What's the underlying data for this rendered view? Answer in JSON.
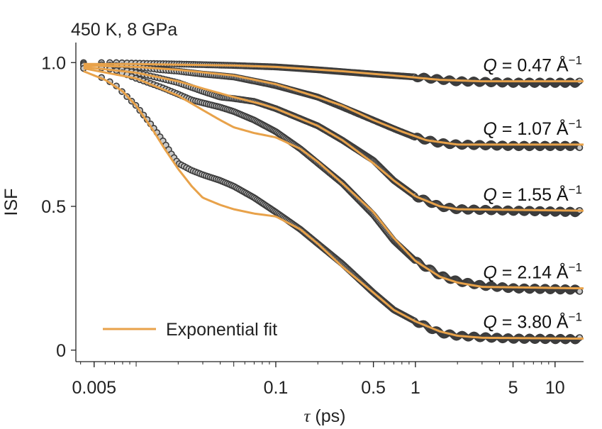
{
  "chart_data": {
    "type": "scatter",
    "title": "450 K, 8 GPa",
    "xlabel_symbol": "τ",
    "xlabel_unit": " (ps)",
    "ylabel": "ISF",
    "xscale": "log",
    "xlim": [
      0.0037,
      16
    ],
    "ylim": [
      -0.04,
      1.05
    ],
    "x_ticks": [
      {
        "value": 0.005,
        "label": "0.005"
      },
      {
        "value": 0.1,
        "label": "0.1"
      },
      {
        "value": 0.5,
        "label": "0.5"
      },
      {
        "value": 1,
        "label": "1"
      },
      {
        "value": 5,
        "label": "5"
      },
      {
        "value": 10,
        "label": "10"
      }
    ],
    "y_ticks": [
      {
        "value": 0,
        "label": "0"
      },
      {
        "value": 0.5,
        "label": "0.5"
      },
      {
        "value": 1.0,
        "label": "1.0"
      }
    ],
    "legend": {
      "label": "Exponential fit",
      "color": "#E8A24A",
      "placement": "bottom-left"
    },
    "colors": {
      "marker_fill": "#c8c8c8",
      "marker_edge": "#3c3c3c",
      "fit_line": "#E8A24A",
      "axis": "#222222"
    },
    "series": [
      {
        "name": "Q = 0.47 Å⁻¹",
        "label_prefix": "Q",
        "label_value": " = 0.47 Å",
        "label_exp": "−1",
        "points": [
          [
            0.0042,
            1.0
          ],
          [
            0.007,
            1.0
          ],
          [
            0.01,
            0.998
          ],
          [
            0.02,
            0.995
          ],
          [
            0.05,
            0.99
          ],
          [
            0.1,
            0.985
          ],
          [
            0.2,
            0.975
          ],
          [
            0.5,
            0.96
          ],
          [
            1,
            0.95
          ],
          [
            2,
            0.935
          ],
          [
            5,
            0.93
          ],
          [
            15,
            0.93
          ]
        ],
        "fit": [
          [
            0.0042,
            0.995
          ],
          [
            0.01,
            0.995
          ],
          [
            0.05,
            0.99
          ],
          [
            0.1,
            0.985
          ],
          [
            0.3,
            0.97
          ],
          [
            0.7,
            0.955
          ],
          [
            1.5,
            0.94
          ],
          [
            3,
            0.935
          ],
          [
            15,
            0.935
          ]
        ]
      },
      {
        "name": "Q = 1.07 Å⁻¹",
        "label_prefix": "Q",
        "label_value": " = 1.07 Å",
        "label_exp": "−1",
        "points": [
          [
            0.0042,
            0.995
          ],
          [
            0.007,
            0.99
          ],
          [
            0.01,
            0.985
          ],
          [
            0.015,
            0.975
          ],
          [
            0.02,
            0.97
          ],
          [
            0.03,
            0.96
          ],
          [
            0.05,
            0.95
          ],
          [
            0.08,
            0.93
          ],
          [
            0.1,
            0.92
          ],
          [
            0.2,
            0.88
          ],
          [
            0.3,
            0.845
          ],
          [
            0.5,
            0.8
          ],
          [
            0.7,
            0.77
          ],
          [
            1,
            0.74
          ],
          [
            1.5,
            0.72
          ],
          [
            2,
            0.715
          ],
          [
            5,
            0.71
          ],
          [
            15,
            0.71
          ]
        ],
        "fit": [
          [
            0.0042,
            0.99
          ],
          [
            0.01,
            0.985
          ],
          [
            0.02,
            0.975
          ],
          [
            0.05,
            0.955
          ],
          [
            0.1,
            0.925
          ],
          [
            0.2,
            0.88
          ],
          [
            0.3,
            0.85
          ],
          [
            0.5,
            0.8
          ],
          [
            0.8,
            0.76
          ],
          [
            1.2,
            0.73
          ],
          [
            2,
            0.715
          ],
          [
            15,
            0.715
          ]
        ]
      },
      {
        "name": "Q = 1.55 Å⁻¹",
        "label_prefix": "Q",
        "label_value": " = 1.55 Å",
        "label_exp": "−1",
        "points": [
          [
            0.0042,
            0.995
          ],
          [
            0.007,
            0.98
          ],
          [
            0.01,
            0.965
          ],
          [
            0.015,
            0.945
          ],
          [
            0.02,
            0.93
          ],
          [
            0.03,
            0.9
          ],
          [
            0.04,
            0.88
          ],
          [
            0.05,
            0.875
          ],
          [
            0.07,
            0.865
          ],
          [
            0.1,
            0.84
          ],
          [
            0.2,
            0.78
          ],
          [
            0.3,
            0.73
          ],
          [
            0.5,
            0.66
          ],
          [
            0.7,
            0.59
          ],
          [
            1,
            0.535
          ],
          [
            1.5,
            0.5
          ],
          [
            2,
            0.49
          ],
          [
            5,
            0.485
          ],
          [
            15,
            0.48
          ]
        ],
        "fit": [
          [
            0.0042,
            0.985
          ],
          [
            0.01,
            0.965
          ],
          [
            0.02,
            0.935
          ],
          [
            0.03,
            0.91
          ],
          [
            0.05,
            0.88
          ],
          [
            0.08,
            0.855
          ],
          [
            0.1,
            0.84
          ],
          [
            0.2,
            0.78
          ],
          [
            0.3,
            0.73
          ],
          [
            0.5,
            0.65
          ],
          [
            0.7,
            0.59
          ],
          [
            1,
            0.535
          ],
          [
            1.5,
            0.5
          ],
          [
            2,
            0.49
          ],
          [
            15,
            0.485
          ]
        ]
      },
      {
        "name": "Q = 2.14 Å⁻¹",
        "label_prefix": "Q",
        "label_value": " = 2.14 Å",
        "label_exp": "−1",
        "points": [
          [
            0.0042,
            0.99
          ],
          [
            0.007,
            0.975
          ],
          [
            0.01,
            0.945
          ],
          [
            0.015,
            0.915
          ],
          [
            0.02,
            0.89
          ],
          [
            0.025,
            0.87
          ],
          [
            0.03,
            0.86
          ],
          [
            0.04,
            0.845
          ],
          [
            0.05,
            0.83
          ],
          [
            0.07,
            0.8
          ],
          [
            0.1,
            0.76
          ],
          [
            0.15,
            0.7
          ],
          [
            0.2,
            0.65
          ],
          [
            0.3,
            0.58
          ],
          [
            0.5,
            0.47
          ],
          [
            0.7,
            0.38
          ],
          [
            1,
            0.31
          ],
          [
            1.5,
            0.26
          ],
          [
            2,
            0.24
          ],
          [
            3,
            0.225
          ],
          [
            5,
            0.215
          ],
          [
            15,
            0.21
          ]
        ],
        "fit": [
          [
            0.0042,
            0.98
          ],
          [
            0.01,
            0.945
          ],
          [
            0.02,
            0.885
          ],
          [
            0.03,
            0.835
          ],
          [
            0.04,
            0.8
          ],
          [
            0.05,
            0.775
          ],
          [
            0.07,
            0.755
          ],
          [
            0.1,
            0.74
          ],
          [
            0.15,
            0.7
          ],
          [
            0.2,
            0.655
          ],
          [
            0.3,
            0.58
          ],
          [
            0.5,
            0.48
          ],
          [
            0.7,
            0.39
          ],
          [
            1,
            0.31
          ],
          [
            1.5,
            0.255
          ],
          [
            2,
            0.235
          ],
          [
            3,
            0.22
          ],
          [
            15,
            0.215
          ]
        ]
      },
      {
        "name": "Q = 3.80 Å⁻¹",
        "label_prefix": "Q",
        "label_value": " = 3.80 Å",
        "label_exp": "−1",
        "points": [
          [
            0.0042,
            0.98
          ],
          [
            0.007,
            0.925
          ],
          [
            0.01,
            0.85
          ],
          [
            0.013,
            0.78
          ],
          [
            0.016,
            0.72
          ],
          [
            0.018,
            0.68
          ],
          [
            0.02,
            0.65
          ],
          [
            0.025,
            0.625
          ],
          [
            0.03,
            0.61
          ],
          [
            0.04,
            0.59
          ],
          [
            0.05,
            0.57
          ],
          [
            0.07,
            0.53
          ],
          [
            0.1,
            0.48
          ],
          [
            0.15,
            0.42
          ],
          [
            0.2,
            0.37
          ],
          [
            0.3,
            0.3
          ],
          [
            0.5,
            0.2
          ],
          [
            0.7,
            0.14
          ],
          [
            1,
            0.1
          ],
          [
            1.5,
            0.06
          ],
          [
            2,
            0.05
          ],
          [
            3,
            0.045
          ],
          [
            5,
            0.04
          ],
          [
            15,
            0.038
          ]
        ],
        "fit": [
          [
            0.0042,
            0.97
          ],
          [
            0.006,
            0.94
          ],
          [
            0.008,
            0.9
          ],
          [
            0.01,
            0.85
          ],
          [
            0.013,
            0.77
          ],
          [
            0.016,
            0.7
          ],
          [
            0.02,
            0.63
          ],
          [
            0.025,
            0.57
          ],
          [
            0.03,
            0.53
          ],
          [
            0.04,
            0.505
          ],
          [
            0.05,
            0.49
          ],
          [
            0.07,
            0.475
          ],
          [
            0.1,
            0.465
          ],
          [
            0.15,
            0.42
          ],
          [
            0.2,
            0.37
          ],
          [
            0.3,
            0.29
          ],
          [
            0.5,
            0.2
          ],
          [
            0.7,
            0.14
          ],
          [
            1,
            0.1
          ],
          [
            1.5,
            0.065
          ],
          [
            2,
            0.05
          ],
          [
            3,
            0.043
          ],
          [
            15,
            0.04
          ]
        ]
      }
    ]
  }
}
